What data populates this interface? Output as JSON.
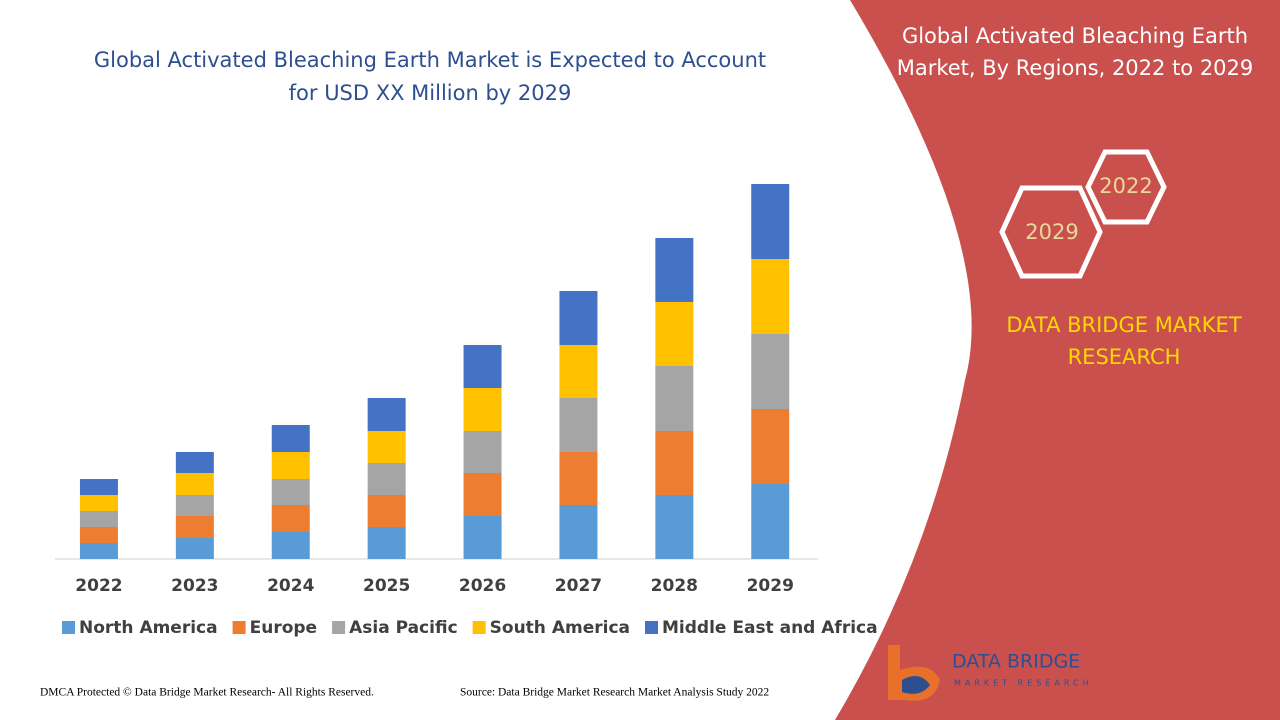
{
  "chart_data": {
    "type": "stacked_bar",
    "title": [
      "Global Activated Bleaching Earth Market is Expected to Account",
      "for USD XX Million by 2029"
    ],
    "categories": [
      "2022",
      "2023",
      "2024",
      "2025",
      "2026",
      "2027",
      "2028",
      "2029"
    ],
    "series": [
      {
        "name": "North America",
        "color": "#5b9bd5",
        "values": [
          16,
          21,
          27,
          32,
          43,
          54,
          64,
          75
        ]
      },
      {
        "name": "Europe",
        "color": "#ed7d31",
        "values": [
          16,
          22,
          27,
          32,
          43,
          53,
          64,
          75
        ]
      },
      {
        "name": "Asia Pacific",
        "color": "#a5a5a5",
        "values": [
          16,
          21,
          26,
          32,
          42,
          54,
          65,
          75
        ]
      },
      {
        "name": "South America",
        "color": "#ffc000",
        "values": [
          16,
          22,
          27,
          32,
          43,
          53,
          64,
          75
        ]
      },
      {
        "name": "Middle East and Africa",
        "color": "#4472c4",
        "values": [
          16,
          21,
          27,
          33,
          43,
          54,
          64,
          75
        ]
      }
    ]
  },
  "panel": {
    "title": [
      "Global Activated Bleaching Earth",
      "Market,  By Regions, 2022 to 2029"
    ],
    "hex_start": "2022",
    "hex_end": "2029",
    "brand": [
      "DATA BRIDGE MARKET",
      "RESEARCH"
    ],
    "logo": [
      "DATA BRIDGE",
      "MARKET RESEARCH"
    ]
  },
  "footer": {
    "left": "DMCA Protected © Data Bridge Market Research- All Rights Reserved.",
    "right": "Source: Data Bridge Market Research Market Analysis Study 2022"
  }
}
